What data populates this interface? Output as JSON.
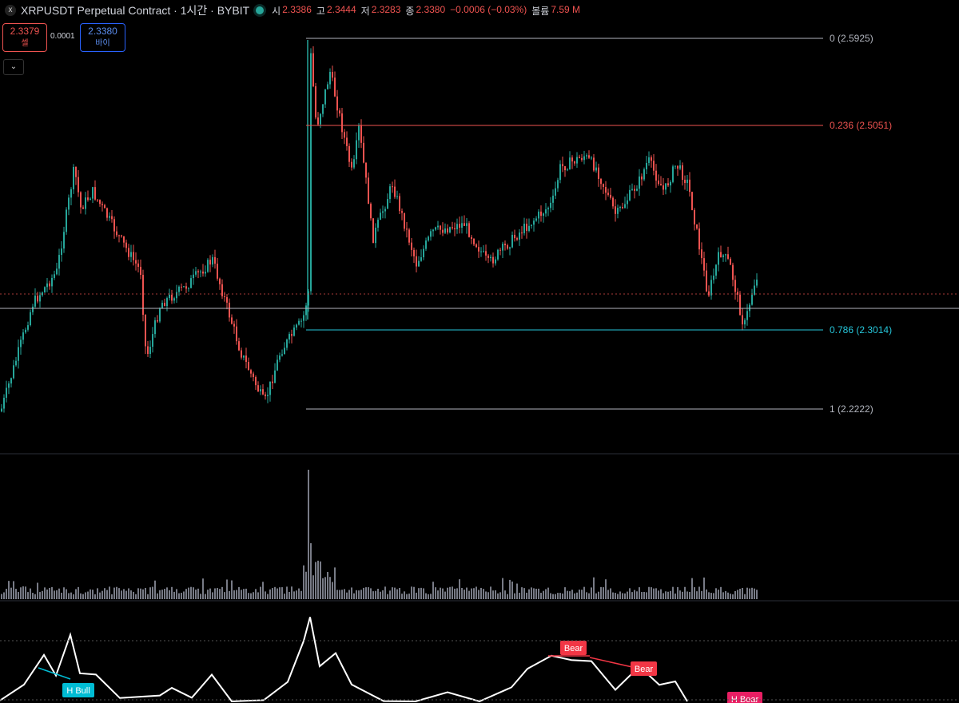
{
  "header": {
    "title": "XRPUSDT Perpetual Contract · 1시간 · BYBIT",
    "ohlc": [
      {
        "k": "시",
        "v": "2.3386"
      },
      {
        "k": "고",
        "v": "2.3444"
      },
      {
        "k": "저",
        "v": "2.3283"
      },
      {
        "k": "종",
        "v": "2.3380"
      },
      {
        "k": "",
        "v": "−0.0006 (−0.03%)"
      },
      {
        "k": "볼륨",
        "v": "7.59 M"
      }
    ]
  },
  "trade": {
    "sell_price": "2.3379",
    "sell_label": "셀",
    "spread": "0.0001",
    "buy_price": "2.3380",
    "buy_label": "바이"
  },
  "fib_levels": [
    {
      "label": "0 (2.5925)",
      "color": "#b2b5be"
    },
    {
      "label": "0.236 (2.5051)",
      "color": "#ef5350"
    },
    {
      "label": "0.786 (2.3014)",
      "color": "#26c6da"
    },
    {
      "label": "1 (2.2222)",
      "color": "#b2b5be"
    }
  ],
  "divergence_tags": [
    {
      "text": "H Bull",
      "color": "#00bcd4"
    },
    {
      "text": "Bear",
      "color": "#f23645"
    },
    {
      "text": "Bear",
      "color": "#f23645"
    },
    {
      "text": "H Bear",
      "color": "#e91e63"
    }
  ],
  "colors": {
    "up": "#26a69a",
    "down": "#ef5350",
    "volume": "#787b86",
    "osc": "#ffffff"
  }
}
